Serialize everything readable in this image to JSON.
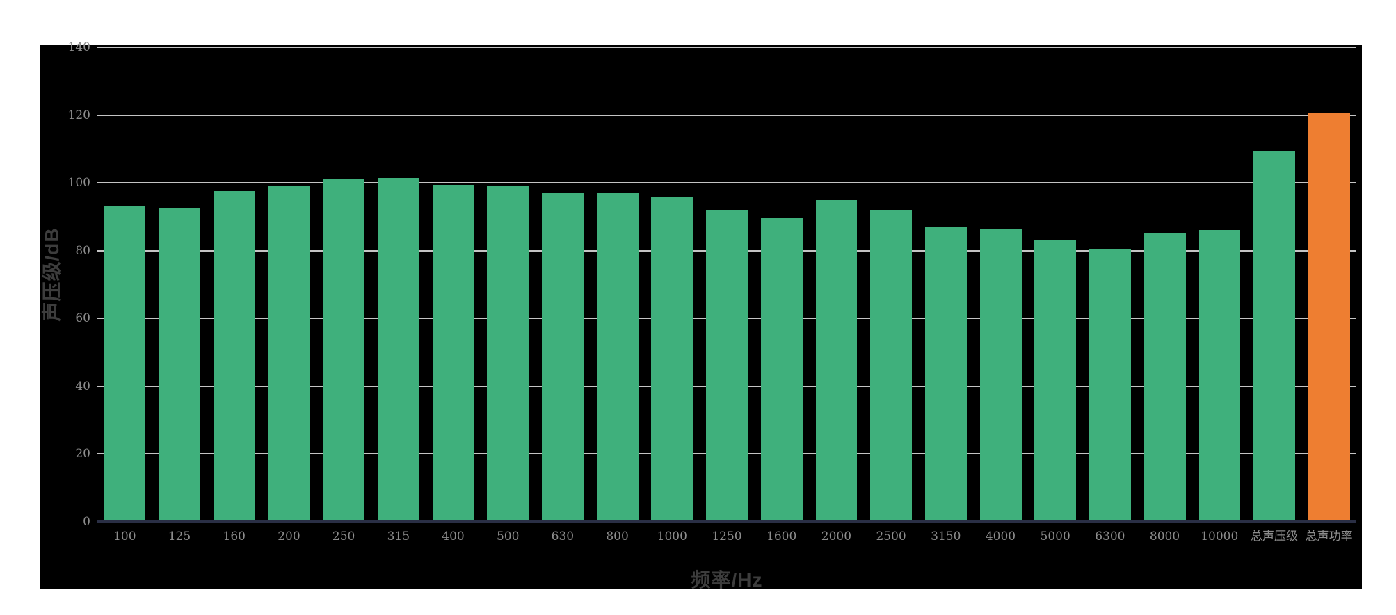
{
  "chart_data": {
    "type": "bar",
    "title": "",
    "xlabel": "频率/Hz",
    "ylabel": "声压级/dB",
    "categories": [
      "100",
      "125",
      "160",
      "200",
      "250",
      "315",
      "400",
      "500",
      "630",
      "800",
      "1000",
      "1250",
      "1600",
      "2000",
      "2500",
      "3150",
      "4000",
      "5000",
      "6300",
      "8000",
      "10000",
      "总声压级",
      "总声功率"
    ],
    "values": [
      93,
      92.5,
      97.5,
      99,
      101,
      101.5,
      99.5,
      99,
      97,
      97,
      96,
      92,
      89.5,
      95,
      92,
      87,
      86.5,
      83,
      80.5,
      85,
      86,
      109.5,
      120.5
    ],
    "ylim": [
      0,
      140
    ],
    "yticks": [
      0,
      20,
      40,
      60,
      80,
      100,
      120,
      140
    ],
    "grid": "horizontal",
    "legend": "none",
    "highlight_category": "总声功率",
    "highlight_index": 22
  },
  "colors": {
    "page_background": "#ffffff",
    "plot_background": "#000000",
    "bar": "#3fb07c",
    "bar_highlight": "#ee7e31",
    "gridline": "#c4c4c4",
    "axis_line": "#2a2f45",
    "tick_label": "#8c8c8c",
    "axis_title": "#3d3d3d"
  }
}
